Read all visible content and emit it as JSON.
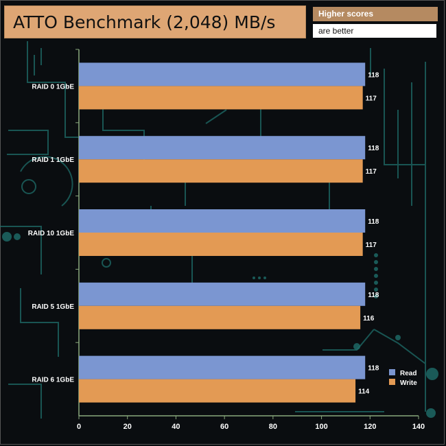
{
  "header": {
    "title": "ATTO Benchmark (2,048) MB/s",
    "note_line1": "Higher scores",
    "note_line2": "are better"
  },
  "colors": {
    "read": "#7b96d1",
    "write": "#e39a54",
    "axis": "#8aa97e",
    "circuit": "#1e6e6a"
  },
  "chart_data": {
    "type": "bar",
    "orientation": "horizontal",
    "title": "ATTO Benchmark (2,048) MB/s",
    "categories": [
      "RAID 0 1GbE",
      "RAID 1 1GbE",
      "RAID 10 1GbE",
      "RAID 5 1GbE",
      "RAID 6 1GbE"
    ],
    "series": [
      {
        "name": "Read",
        "values": [
          118,
          118,
          118,
          118,
          118
        ]
      },
      {
        "name": "Write",
        "values": [
          117,
          117,
          117,
          116,
          114
        ]
      }
    ],
    "xlim": [
      0,
      140
    ],
    "xticks": [
      0,
      20,
      40,
      60,
      80,
      100,
      120,
      140
    ],
    "xlabel": "",
    "ylabel": "",
    "legend": "bottom-right"
  }
}
